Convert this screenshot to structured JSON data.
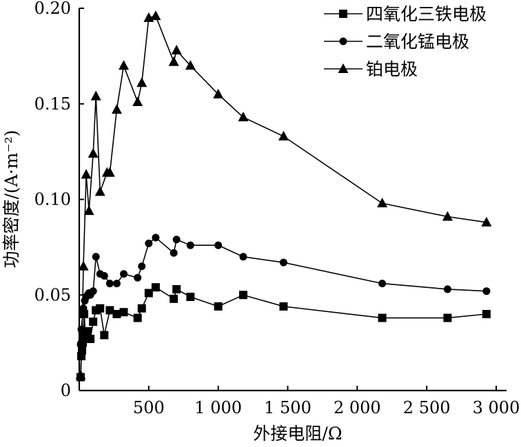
{
  "chart_data": {
    "type": "line",
    "title": "",
    "xlabel": "外接电阻/Ω",
    "ylabel": "功率密度/(A·m⁻²)",
    "xlim": [
      0,
      3000
    ],
    "ylim": [
      0,
      0.2
    ],
    "x_ticks": [
      {
        "value": 500,
        "label": "500"
      },
      {
        "value": 1000,
        "label": "1 000"
      },
      {
        "value": 1500,
        "label": "1 500"
      },
      {
        "value": 2000,
        "label": "2 000"
      },
      {
        "value": 2500,
        "label": "2 500"
      },
      {
        "value": 3000,
        "label": "3 000"
      }
    ],
    "y_ticks": [
      {
        "value": 0,
        "label": "0"
      },
      {
        "value": 0.05,
        "label": "0.05"
      },
      {
        "value": 0.1,
        "label": "0.10"
      },
      {
        "value": 0.15,
        "label": "0.15"
      },
      {
        "value": 0.2,
        "label": "0.20"
      }
    ],
    "grid": false,
    "legend_position": "top-right",
    "series": [
      {
        "name": "四氧化三铁电极",
        "marker": "square",
        "x": [
          10,
          15,
          20,
          25,
          30,
          35,
          45,
          60,
          80,
          100,
          120,
          150,
          180,
          220,
          270,
          320,
          420,
          450,
          500,
          550,
          680,
          700,
          800,
          1000,
          1180,
          1470,
          2180,
          2650,
          2930
        ],
        "y": [
          0.007,
          0.018,
          0.021,
          0.025,
          0.028,
          0.04,
          0.029,
          0.031,
          0.027,
          0.036,
          0.042,
          0.043,
          0.029,
          0.042,
          0.04,
          0.041,
          0.038,
          0.043,
          0.051,
          0.054,
          0.048,
          0.053,
          0.049,
          0.044,
          0.05,
          0.044,
          0.038,
          0.038,
          0.04
        ]
      },
      {
        "name": "二氧化锰电极",
        "marker": "circle",
        "x": [
          10,
          15,
          25,
          30,
          40,
          50,
          60,
          70,
          80,
          100,
          120,
          150,
          180,
          220,
          270,
          320,
          420,
          450,
          500,
          550,
          680,
          700,
          800,
          1000,
          1180,
          1470,
          2180,
          2650,
          2930
        ],
        "y": [
          0.024,
          0.032,
          0.04,
          0.043,
          0.047,
          0.049,
          0.05,
          0.051,
          0.05,
          0.052,
          0.07,
          0.061,
          0.06,
          0.056,
          0.056,
          0.061,
          0.059,
          0.065,
          0.077,
          0.08,
          0.072,
          0.079,
          0.076,
          0.076,
          0.07,
          0.067,
          0.056,
          0.053,
          0.052
        ]
      },
      {
        "name": "铂电极",
        "marker": "triangle",
        "x": [
          10,
          20,
          30,
          50,
          70,
          100,
          120,
          150,
          200,
          220,
          270,
          320,
          420,
          450,
          500,
          550,
          680,
          700,
          800,
          1000,
          1180,
          1470,
          2180,
          2650,
          2930
        ],
        "y": [
          0.008,
          0.027,
          0.065,
          0.113,
          0.094,
          0.124,
          0.154,
          0.104,
          0.114,
          0.114,
          0.147,
          0.17,
          0.151,
          0.161,
          0.195,
          0.196,
          0.172,
          0.178,
          0.17,
          0.155,
          0.143,
          0.133,
          0.098,
          0.091,
          0.088
        ]
      }
    ]
  }
}
